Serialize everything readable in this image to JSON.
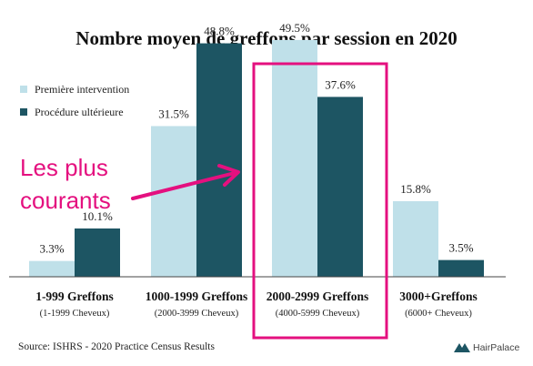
{
  "chart_data": {
    "type": "bar",
    "title": "Nombre moyen de greffons par session en 2020",
    "categories": [
      "1-999 Greffons",
      "1000-1999 Greffons",
      "2000-2999 Greffons",
      "3000+Greffons"
    ],
    "category_sublabels": [
      "(1-1999 Cheveux)",
      "(2000-3999 Cheveux)",
      "(4000-5999 Cheveux)",
      "(6000+ Cheveux)"
    ],
    "series": [
      {
        "name": "Première intervention",
        "values": [
          3.3,
          31.5,
          49.5,
          15.8
        ],
        "labels": [
          "3.3%",
          "31.5%",
          "49.5%",
          "15.8%"
        ],
        "color": "#bfe0e9"
      },
      {
        "name": "Procédure ultérieure",
        "values": [
          10.1,
          48.8,
          37.6,
          3.5
        ],
        "labels": [
          "10.1%",
          "48.8%",
          "37.6%",
          "3.5%"
        ],
        "color": "#1d5563"
      }
    ],
    "ylim": [
      0,
      55
    ],
    "xlabel": "",
    "ylabel": "",
    "grid": false,
    "legend_placement": "top-left",
    "highlight_category": "2000-2999 Greffons",
    "highlight_color": "#e4107f"
  },
  "annotation": {
    "lines": [
      "Les plus",
      "courants"
    ],
    "color": "#e4107f"
  },
  "source": "Source: ISHRS - 2020 Practice Census Results",
  "brand": {
    "name": "HairPalace"
  }
}
